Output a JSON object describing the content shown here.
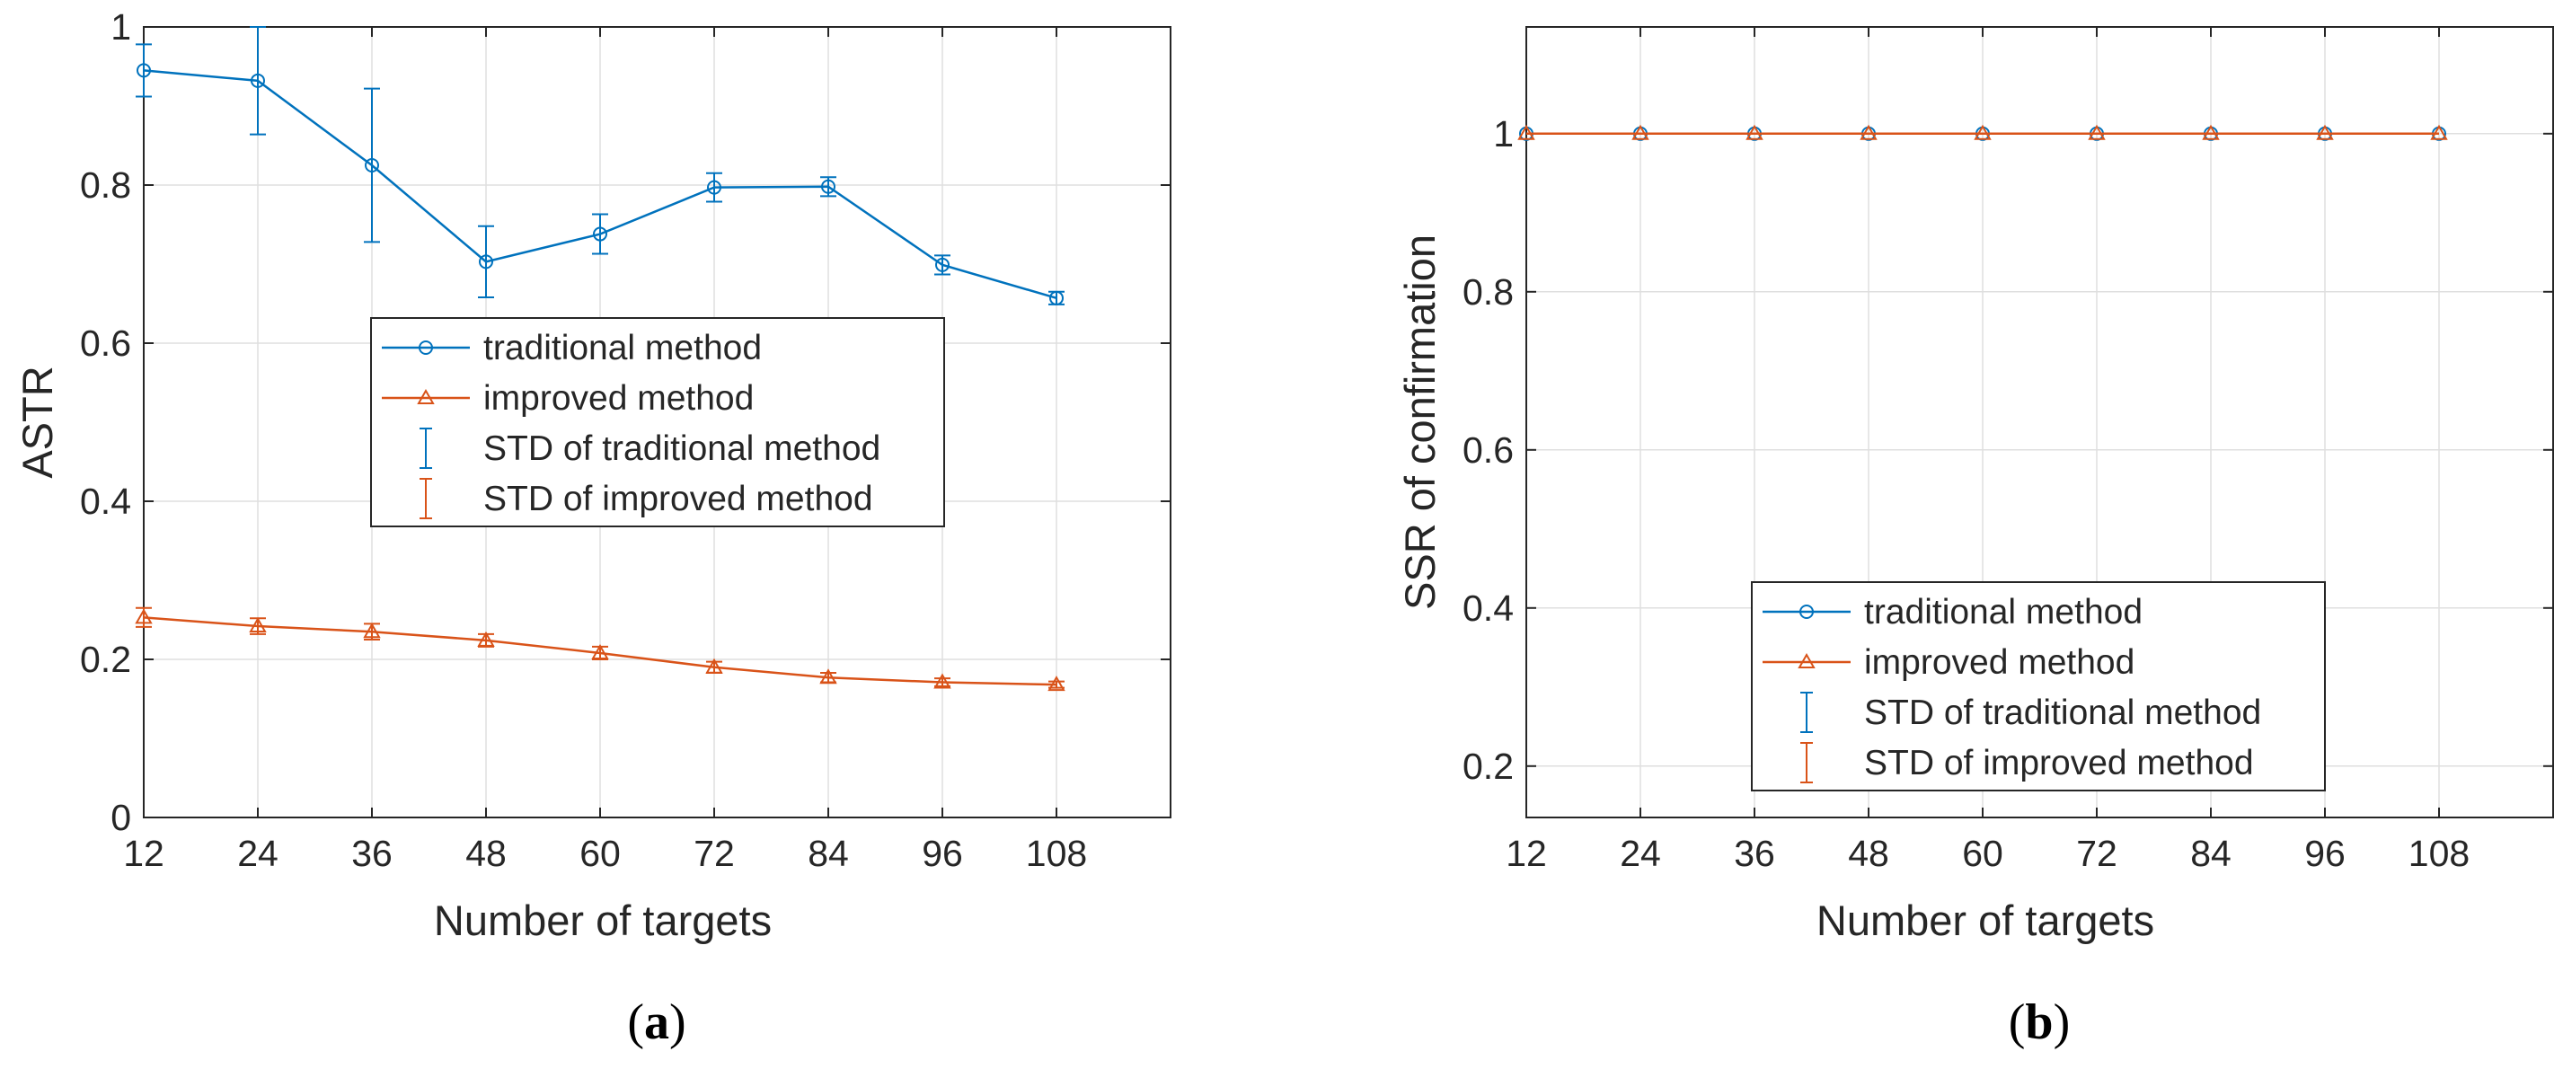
{
  "colors": {
    "traditional": "#0072BD",
    "improved": "#D95319",
    "grid": "#dfdfdf",
    "axis": "#262626"
  },
  "chart_data": [
    {
      "type": "line",
      "panel_label": "(a)",
      "panel_letter": "a",
      "xlabel": "Number of targets",
      "ylabel": "ASTR",
      "x": [
        12,
        24,
        36,
        48,
        60,
        72,
        84,
        96,
        108
      ],
      "xlim": [
        12,
        120
      ],
      "ylim": [
        0,
        1
      ],
      "xticks": [
        12,
        24,
        36,
        48,
        60,
        72,
        84,
        96,
        108
      ],
      "yticks": [
        0,
        0.2,
        0.4,
        0.6,
        0.8,
        1
      ],
      "ytick_labels": [
        "0",
        "0.2",
        "0.4",
        "0.6",
        "0.8",
        "1"
      ],
      "grid": true,
      "legend_position": "center",
      "series": [
        {
          "name": "traditional method",
          "marker": "circle",
          "values": [
            0.945,
            0.932,
            0.825,
            0.703,
            0.738,
            0.797,
            0.798,
            0.699,
            0.657
          ],
          "errors": [
            0.033,
            0.068,
            0.097,
            0.045,
            0.025,
            0.018,
            0.012,
            0.012,
            0.008
          ]
        },
        {
          "name": "improved method",
          "marker": "triangle",
          "values": [
            0.253,
            0.242,
            0.235,
            0.224,
            0.208,
            0.19,
            0.177,
            0.171,
            0.168
          ],
          "errors": [
            0.012,
            0.01,
            0.01,
            0.008,
            0.008,
            0.007,
            0.006,
            0.005,
            0.004
          ]
        }
      ],
      "legend": [
        "traditional method",
        "improved method",
        "STD of traditional method",
        "STD of improved method"
      ]
    },
    {
      "type": "line",
      "panel_label": "(b)",
      "panel_letter": "b",
      "xlabel": "Number of targets",
      "ylabel": "SSR of confirmation",
      "x": [
        12,
        24,
        36,
        48,
        60,
        72,
        84,
        96,
        108
      ],
      "xlim": [
        12,
        120
      ],
      "ylim": [
        0.135,
        1.135
      ],
      "xticks": [
        12,
        24,
        36,
        48,
        60,
        72,
        84,
        96,
        108
      ],
      "yticks": [
        0.2,
        0.4,
        0.6,
        0.8,
        1
      ],
      "ytick_labels": [
        "0.2",
        "0.4",
        "0.6",
        "0.8",
        "1"
      ],
      "grid": true,
      "legend_position": "lower-center",
      "series": [
        {
          "name": "traditional method",
          "marker": "circle",
          "values": [
            1,
            1,
            1,
            1,
            1,
            1,
            1,
            1,
            1
          ],
          "errors": [
            0,
            0,
            0,
            0,
            0,
            0,
            0,
            0,
            0
          ]
        },
        {
          "name": "improved method",
          "marker": "triangle",
          "values": [
            1,
            1,
            1,
            1,
            1,
            1,
            1,
            1,
            1
          ],
          "errors": [
            0,
            0,
            0,
            0,
            0,
            0,
            0,
            0,
            0
          ]
        }
      ],
      "legend": [
        "traditional method",
        "improved method",
        "STD of traditional method",
        "STD of improved method"
      ]
    }
  ]
}
